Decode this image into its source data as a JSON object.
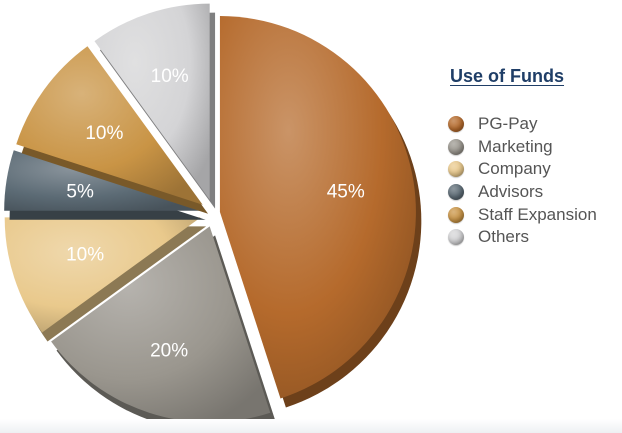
{
  "chart_data": {
    "type": "pie",
    "title": "Use of Funds",
    "legend_position": "right",
    "slices": [
      {
        "name": "PG-Pay",
        "value": 45,
        "label": "45%",
        "color": "#b56a2c"
      },
      {
        "name": "Marketing",
        "value": 20,
        "label": "20%",
        "color": "#9a968e"
      },
      {
        "name": "Company",
        "value": 10,
        "label": "10%",
        "color": "#e9c98c"
      },
      {
        "name": "Advisors",
        "value": 5,
        "label": "5%",
        "color": "#5c6b75"
      },
      {
        "name": "Staff Expansion",
        "value": 10,
        "label": "10%",
        "color": "#c99445"
      },
      {
        "name": "Others",
        "value": 10,
        "label": "10%",
        "color": "#d4d4d6"
      }
    ]
  }
}
